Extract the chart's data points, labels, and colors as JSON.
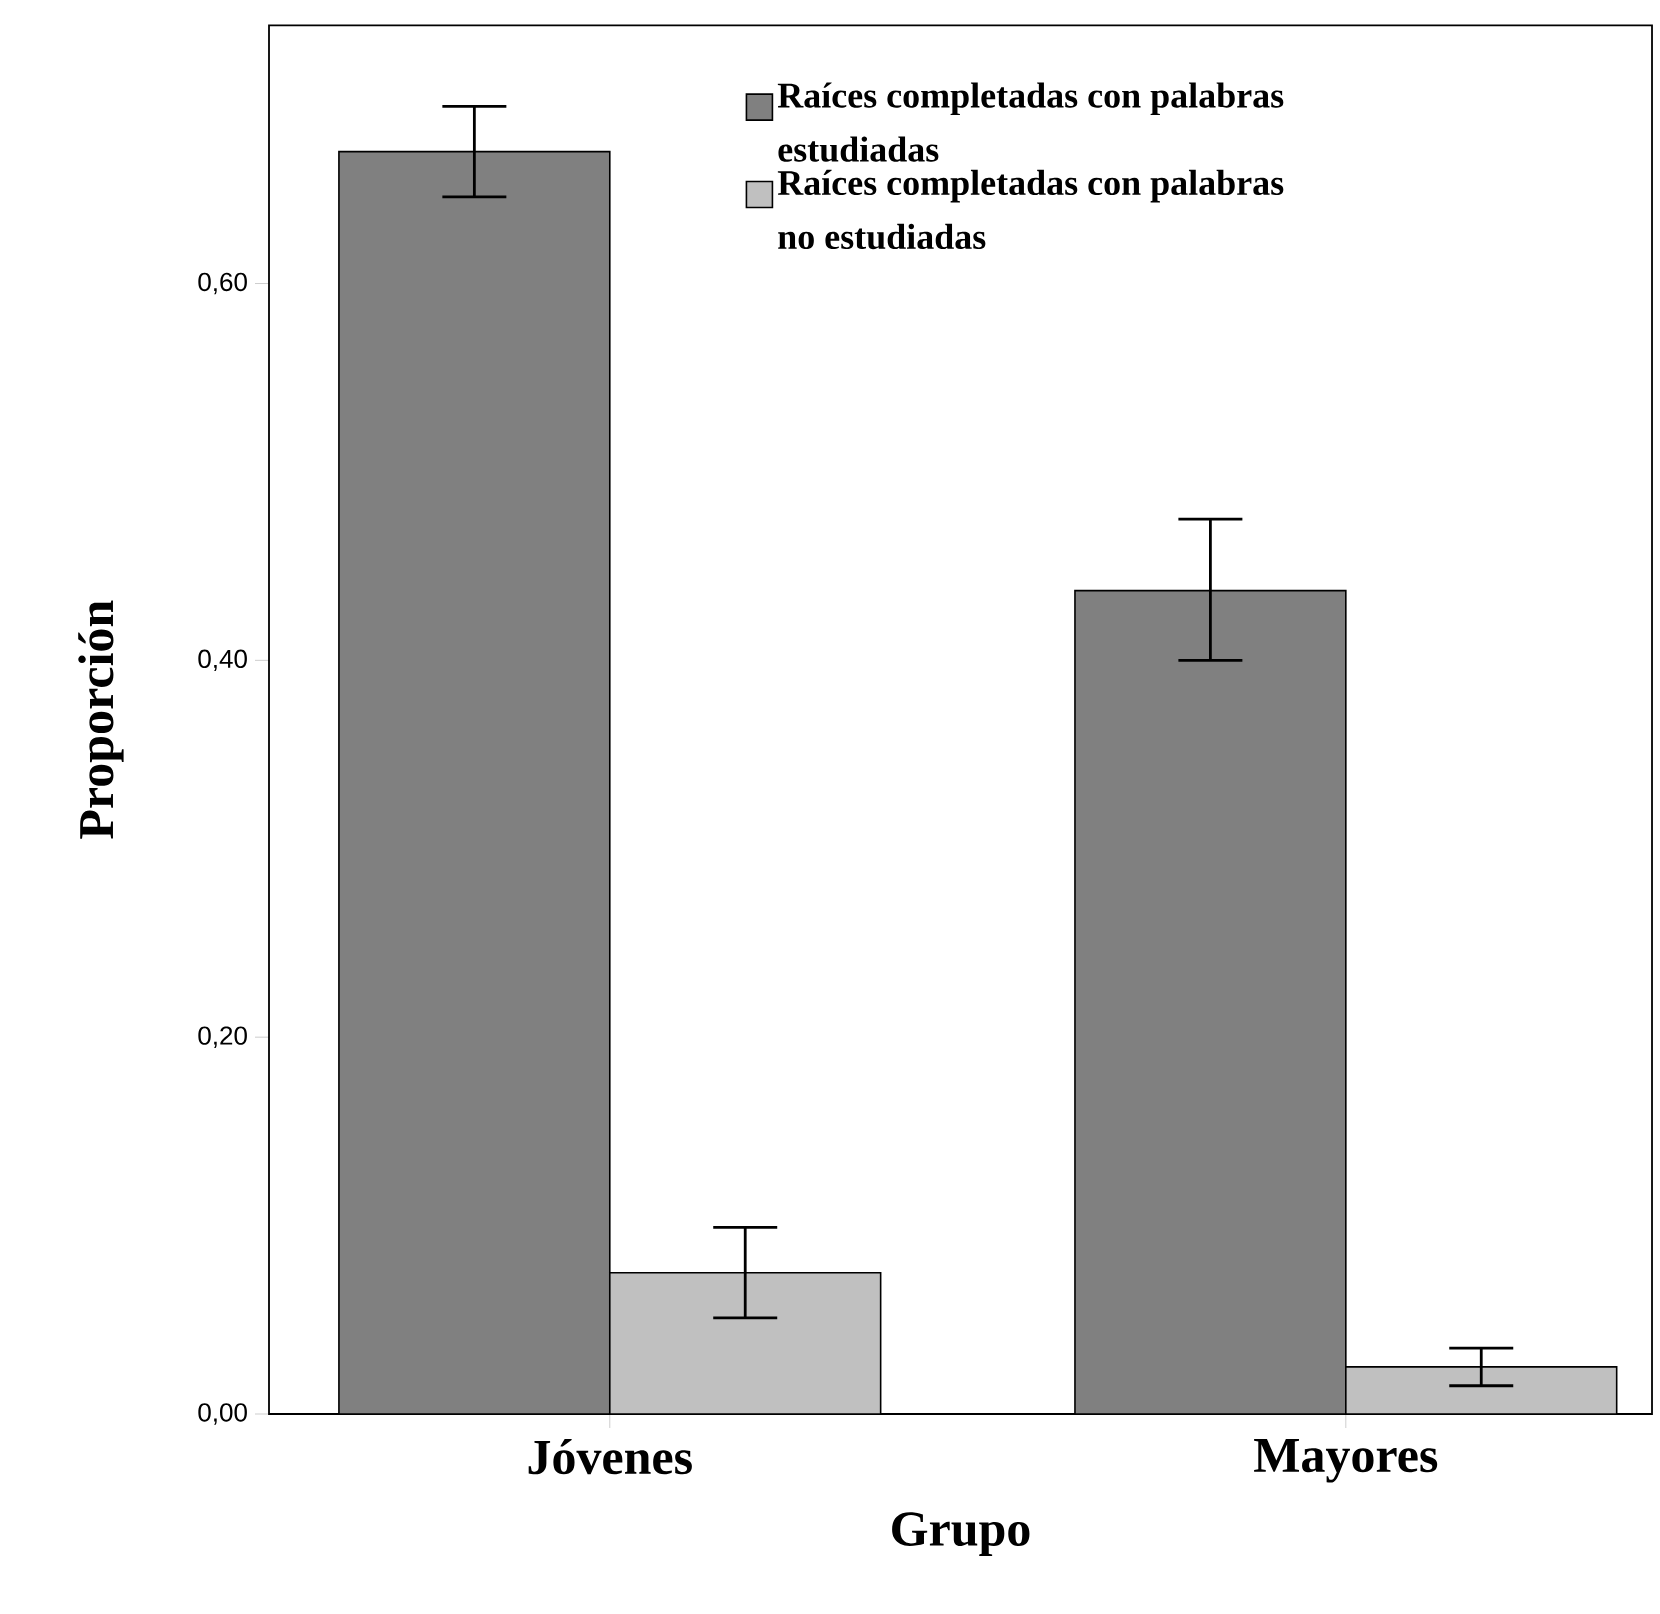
{
  "chart_data": {
    "type": "bar",
    "xlabel": "Grupo",
    "ylabel": "Proporción",
    "categories": [
      "Jóvenes",
      "Mayores"
    ],
    "series": [
      {
        "name": "Raíces completadas con palabras estudiadas",
        "color": "#808080",
        "values": [
          0.67,
          0.437
        ],
        "errors": [
          [
            0.646,
            0.694
          ],
          [
            0.4,
            0.475
          ]
        ]
      },
      {
        "name": "Raíces completadas con palabras no estudiadas",
        "color": "#c0c0c0",
        "values": [
          0.075,
          0.025
        ],
        "errors": [
          [
            0.051,
            0.099
          ],
          [
            0.015,
            0.035
          ]
        ]
      }
    ],
    "ylim": [
      0,
      0.737
    ],
    "yticks": [
      {
        "value": 0,
        "label": "0,00"
      },
      {
        "value": 0.2,
        "label": "0,20"
      },
      {
        "value": 0.4,
        "label": "0,40"
      },
      {
        "value": 0.6,
        "label": "0,60"
      }
    ],
    "grid": false,
    "legend": "top right"
  }
}
